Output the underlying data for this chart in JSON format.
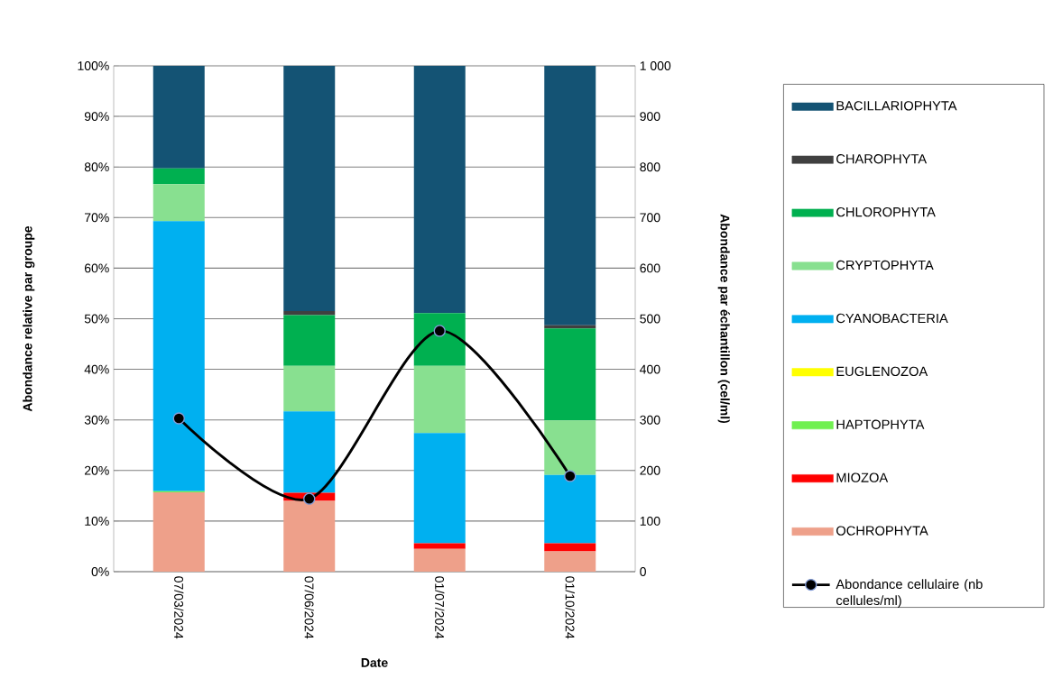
{
  "chart_data": {
    "type": "bar",
    "stacked": true,
    "xlabel": "Date",
    "ylabel": "Abondance relative par groupe",
    "y2label": "Abondance par échantillon (cel/ml)",
    "categories": [
      "07/03/2024",
      "07/06/2024",
      "01/07/2024",
      "01/10/2024"
    ],
    "series": [
      {
        "name": "OCHROPHYTA",
        "color": "#eea08a",
        "values": [
          15.7,
          14.0,
          4.5,
          4.0
        ]
      },
      {
        "name": "MIOZOA",
        "color": "#ff0000",
        "values": [
          0,
          1.6,
          1.1,
          1.6
        ]
      },
      {
        "name": "HAPTOPHYTA",
        "color": "#70f050",
        "values": [
          0.2,
          0,
          0,
          0
        ]
      },
      {
        "name": "EUGLENOZOA",
        "color": "#ffff00",
        "values": [
          0,
          0,
          0,
          0
        ]
      },
      {
        "name": "CYANOBACTERIA",
        "color": "#00b0f0",
        "values": [
          53.4,
          16.1,
          21.8,
          13.5
        ]
      },
      {
        "name": "CRYPTOPHYTA",
        "color": "#88e090",
        "values": [
          7.3,
          9.0,
          13.3,
          10.8
        ]
      },
      {
        "name": "CHLOROPHYTA",
        "color": "#00b050",
        "values": [
          3.1,
          10.0,
          10.4,
          18.2
        ]
      },
      {
        "name": "CHAROPHYTA",
        "color": "#404040",
        "values": [
          0,
          0.8,
          0,
          0.6
        ]
      },
      {
        "name": "BACILLARIOPHYTA",
        "color": "#145374",
        "values": [
          20.3,
          48.5,
          48.9,
          51.3
        ]
      },
      {
        "name": "Abondance cellulaire (nb cellules/ml)",
        "type": "line",
        "axis": "y2",
        "color": "#000000",
        "values": [
          303,
          144,
          476,
          189
        ]
      }
    ],
    "ylim": [
      0,
      100
    ],
    "yticks": [
      {
        "value": 0,
        "label": "0%"
      },
      {
        "value": 10,
        "label": "10%"
      },
      {
        "value": 20,
        "label": "20%"
      },
      {
        "value": 30,
        "label": "30%"
      },
      {
        "value": 40,
        "label": "40%"
      },
      {
        "value": 50,
        "label": "50%"
      },
      {
        "value": 60,
        "label": "60%"
      },
      {
        "value": 70,
        "label": "70%"
      },
      {
        "value": 80,
        "label": "80%"
      },
      {
        "value": 90,
        "label": "90%"
      },
      {
        "value": 100,
        "label": "100%"
      }
    ],
    "y2lim": [
      0,
      1000
    ],
    "y2ticks": [
      0,
      100,
      200,
      300,
      400,
      500,
      600,
      700,
      800,
      900,
      {
        "value": 1000,
        "label": "1 000"
      }
    ],
    "grid": "y",
    "legend": "right",
    "marker": "circle"
  }
}
